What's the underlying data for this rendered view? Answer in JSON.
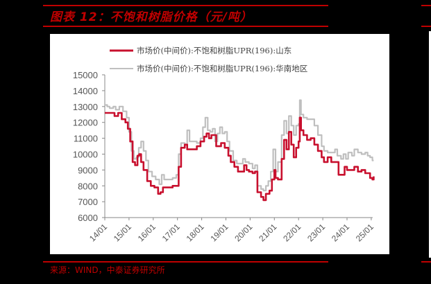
{
  "header": {
    "title": "图表 12：不饱和树脂价格（元/吨）"
  },
  "footer": {
    "source": "来源：WIND，中泰证券研究所"
  },
  "colors": {
    "accent": "#c00000",
    "series_shandong": "#c8102e",
    "series_south_china": "#bfbfbf",
    "background": "#000000",
    "panel": "#ffffff"
  },
  "chart_data": {
    "type": "line",
    "title": "不饱和树脂价格（元/吨）",
    "xlabel": "",
    "ylabel": "",
    "ylim": [
      6000,
      15000
    ],
    "yticks": [
      6000,
      7000,
      8000,
      9000,
      10000,
      11000,
      12000,
      13000,
      14000,
      15000
    ],
    "xticks": [
      "14/01",
      "15/01",
      "16/01",
      "17/01",
      "18/01",
      "19/01",
      "20/01",
      "21/01",
      "22/01",
      "23/01",
      "24/01",
      "25/01"
    ],
    "xlim": [
      2014.0,
      2025.1
    ],
    "grid": false,
    "legend_position": "top",
    "series": [
      {
        "name": "市场价(中间价):不饱和树脂UPR(196):山东",
        "color": "#c8102e",
        "points": [
          [
            2014.0,
            12600
          ],
          [
            2014.25,
            12600
          ],
          [
            2014.4,
            12400
          ],
          [
            2014.55,
            12600
          ],
          [
            2014.7,
            12200
          ],
          [
            2014.85,
            12000
          ],
          [
            2014.95,
            11600
          ],
          [
            2015.05,
            10800
          ],
          [
            2015.15,
            9500
          ],
          [
            2015.25,
            9300
          ],
          [
            2015.35,
            9900
          ],
          [
            2015.42,
            10000
          ],
          [
            2015.5,
            9500
          ],
          [
            2015.6,
            9000
          ],
          [
            2015.75,
            8300
          ],
          [
            2015.9,
            8000
          ],
          [
            2016.05,
            7900
          ],
          [
            2016.2,
            7500
          ],
          [
            2016.3,
            7600
          ],
          [
            2016.4,
            7900
          ],
          [
            2016.6,
            7900
          ],
          [
            2016.8,
            8000
          ],
          [
            2016.95,
            8000
          ],
          [
            2017.05,
            9200
          ],
          [
            2017.15,
            10400
          ],
          [
            2017.3,
            10600
          ],
          [
            2017.4,
            10300
          ],
          [
            2017.6,
            10300
          ],
          [
            2017.8,
            10500
          ],
          [
            2017.95,
            10800
          ],
          [
            2018.1,
            11100
          ],
          [
            2018.2,
            11300
          ],
          [
            2018.3,
            11000
          ],
          [
            2018.4,
            11200
          ],
          [
            2018.6,
            10500
          ],
          [
            2018.7,
            10500
          ],
          [
            2018.8,
            10700
          ],
          [
            2018.95,
            10400
          ],
          [
            2019.1,
            9900
          ],
          [
            2019.2,
            9500
          ],
          [
            2019.35,
            9200
          ],
          [
            2019.5,
            8900
          ],
          [
            2019.7,
            8900
          ],
          [
            2019.75,
            9300
          ],
          [
            2019.85,
            9000
          ],
          [
            2019.95,
            8900
          ],
          [
            2020.1,
            8800
          ],
          [
            2020.2,
            8900
          ],
          [
            2020.3,
            7600
          ],
          [
            2020.45,
            7300
          ],
          [
            2020.55,
            7100
          ],
          [
            2020.65,
            7500
          ],
          [
            2020.8,
            7700
          ],
          [
            2020.9,
            8400
          ],
          [
            2021.0,
            9000
          ],
          [
            2021.05,
            8500
          ],
          [
            2021.15,
            8400
          ],
          [
            2021.3,
            9700
          ],
          [
            2021.4,
            10900
          ],
          [
            2021.5,
            10300
          ],
          [
            2021.6,
            11400
          ],
          [
            2021.7,
            10600
          ],
          [
            2021.8,
            9800
          ],
          [
            2021.9,
            10400
          ],
          [
            2022.0,
            10800
          ],
          [
            2022.05,
            12300
          ],
          [
            2022.1,
            11500
          ],
          [
            2022.2,
            11200
          ],
          [
            2022.35,
            10900
          ],
          [
            2022.5,
            11000
          ],
          [
            2022.65,
            10600
          ],
          [
            2022.8,
            10200
          ],
          [
            2022.95,
            9800
          ],
          [
            2023.05,
            9500
          ],
          [
            2023.2,
            9800
          ],
          [
            2023.35,
            9500
          ],
          [
            2023.5,
            9500
          ],
          [
            2023.65,
            8700
          ],
          [
            2023.8,
            8700
          ],
          [
            2023.9,
            9200
          ],
          [
            2024.0,
            9000
          ],
          [
            2024.15,
            9000
          ],
          [
            2024.3,
            9200
          ],
          [
            2024.45,
            8900
          ],
          [
            2024.6,
            9000
          ],
          [
            2024.75,
            8800
          ],
          [
            2024.85,
            8800
          ],
          [
            2024.95,
            8500
          ],
          [
            2025.05,
            8400
          ],
          [
            2025.1,
            8600
          ]
        ]
      },
      {
        "name": "市场价(中间价):不饱和树脂UPR(196):华南地区",
        "color": "#bfbfbf",
        "points": [
          [
            2014.0,
            13100
          ],
          [
            2014.1,
            13000
          ],
          [
            2014.2,
            12900
          ],
          [
            2014.35,
            13000
          ],
          [
            2014.45,
            12800
          ],
          [
            2014.6,
            13000
          ],
          [
            2014.75,
            12700
          ],
          [
            2014.9,
            12300
          ],
          [
            2015.0,
            11400
          ],
          [
            2015.1,
            10200
          ],
          [
            2015.2,
            9700
          ],
          [
            2015.3,
            9800
          ],
          [
            2015.4,
            10400
          ],
          [
            2015.5,
            10800
          ],
          [
            2015.6,
            10200
          ],
          [
            2015.7,
            9600
          ],
          [
            2015.8,
            8900
          ],
          [
            2015.95,
            8600
          ],
          [
            2016.1,
            8400
          ],
          [
            2016.25,
            8100
          ],
          [
            2016.35,
            8700
          ],
          [
            2016.45,
            8400
          ],
          [
            2016.6,
            8400
          ],
          [
            2016.8,
            8500
          ],
          [
            2016.95,
            8700
          ],
          [
            2017.05,
            10000
          ],
          [
            2017.15,
            10700
          ],
          [
            2017.3,
            10600
          ],
          [
            2017.4,
            11500
          ],
          [
            2017.5,
            10800
          ],
          [
            2017.6,
            10800
          ],
          [
            2017.8,
            10700
          ],
          [
            2017.95,
            11000
          ],
          [
            2018.05,
            11700
          ],
          [
            2018.15,
            12300
          ],
          [
            2018.25,
            11500
          ],
          [
            2018.35,
            11400
          ],
          [
            2018.45,
            11600
          ],
          [
            2018.55,
            10800
          ],
          [
            2018.65,
            11300
          ],
          [
            2018.75,
            11700
          ],
          [
            2018.85,
            11300
          ],
          [
            2018.95,
            11400
          ],
          [
            2019.05,
            10800
          ],
          [
            2019.15,
            10200
          ],
          [
            2019.3,
            9600
          ],
          [
            2019.45,
            9400
          ],
          [
            2019.6,
            9400
          ],
          [
            2019.7,
            9700
          ],
          [
            2019.8,
            9500
          ],
          [
            2019.95,
            9400
          ],
          [
            2020.1,
            9100
          ],
          [
            2020.2,
            9300
          ],
          [
            2020.3,
            8000
          ],
          [
            2020.45,
            7800
          ],
          [
            2020.55,
            7700
          ],
          [
            2020.65,
            8000
          ],
          [
            2020.75,
            8300
          ],
          [
            2020.85,
            8900
          ],
          [
            2020.95,
            10300
          ],
          [
            2021.05,
            8900
          ],
          [
            2021.15,
            9500
          ],
          [
            2021.3,
            11200
          ],
          [
            2021.4,
            12100
          ],
          [
            2021.5,
            11300
          ],
          [
            2021.6,
            12400
          ],
          [
            2021.7,
            11800
          ],
          [
            2021.8,
            11200
          ],
          [
            2021.9,
            11800
          ],
          [
            2022.0,
            11900
          ],
          [
            2022.05,
            13400
          ],
          [
            2022.1,
            12500
          ],
          [
            2022.2,
            12300
          ],
          [
            2022.35,
            12200
          ],
          [
            2022.5,
            12200
          ],
          [
            2022.65,
            11800
          ],
          [
            2022.8,
            11200
          ],
          [
            2022.95,
            10500
          ],
          [
            2023.05,
            10200
          ],
          [
            2023.2,
            10100
          ],
          [
            2023.35,
            10100
          ],
          [
            2023.5,
            10300
          ],
          [
            2023.6,
            9900
          ],
          [
            2023.75,
            9700
          ],
          [
            2023.85,
            10000
          ],
          [
            2023.95,
            9700
          ],
          [
            2024.05,
            10100
          ],
          [
            2024.2,
            9900
          ],
          [
            2024.3,
            10300
          ],
          [
            2024.45,
            10100
          ],
          [
            2024.6,
            10000
          ],
          [
            2024.75,
            10100
          ],
          [
            2024.85,
            9900
          ],
          [
            2024.95,
            9800
          ],
          [
            2025.05,
            9600
          ],
          [
            2025.1,
            9600
          ]
        ]
      }
    ]
  }
}
